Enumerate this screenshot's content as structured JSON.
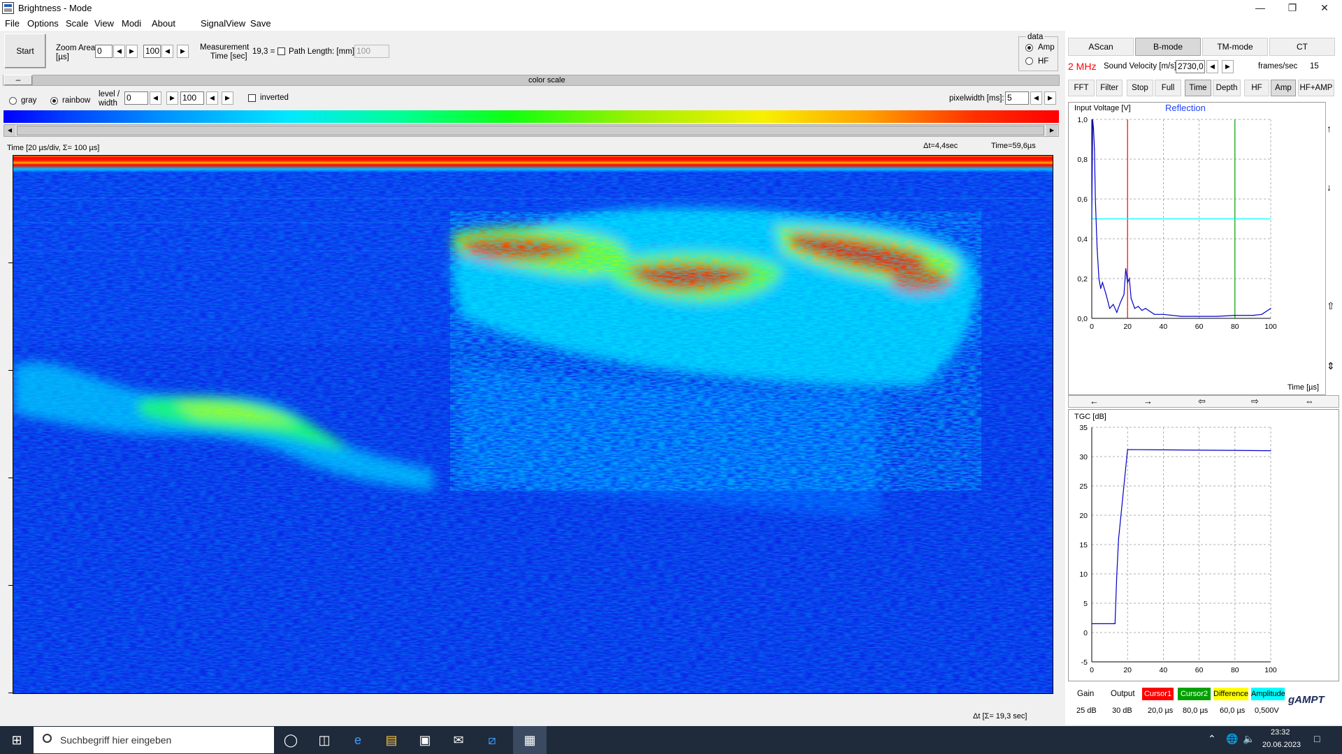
{
  "window": {
    "title": "Brightness - Mode"
  },
  "menu": [
    "File",
    "Options",
    "Scale",
    "View",
    "Modi",
    "About",
    "SignalView",
    "Save"
  ],
  "toolbar": {
    "start": "Start",
    "zoom_label": "Zoom Area",
    "zoom_unit": "[µs]",
    "zoom_from": "0",
    "zoom_to": "100",
    "meas_label1": "Measurement",
    "meas_label2": "Time [sec]",
    "meas_value": "19,3 =",
    "path_label": "Path Length: [mm]",
    "path_value": "100",
    "data_group": "data",
    "data_amp": "Amp",
    "data_hf": "HF"
  },
  "colorscale": {
    "collapse": "–",
    "title": "color scale",
    "gray": "gray",
    "rainbow": "rainbow",
    "level_label1": "level /",
    "level_label2": "width",
    "level_from": "0",
    "level_to": "100",
    "inverted": "inverted",
    "pixelwidth_label": "pixelwidth [ms]:",
    "pixelwidth_value": "5"
  },
  "bscan": {
    "time_label": "Time   [20 µs/div, Σ= 100 µs]",
    "dt": "Δt=4,4sec",
    "time": "Time=59,6µs",
    "bottom_label": "Δt  [Σ= 19,3 sec]"
  },
  "tabs": [
    "AScan",
    "B-mode",
    "TM-mode",
    "CT"
  ],
  "tab_selected": "B-mode",
  "freq": "2 MHz",
  "sound_velocity_label": "Sound Velocity [m/s]",
  "sound_velocity_value": "2730,0",
  "frames_label": "frames/sec",
  "frames_value": "15",
  "buttons": [
    "FFT",
    "Filter",
    "Stop",
    "Full",
    "Time",
    "Depth",
    "HF",
    "Amp",
    "HF+AMP"
  ],
  "ascan": {
    "ylabel": "Input Voltage [V]",
    "title": "Reflection",
    "xlabel": "Time [µs]",
    "yticks": [
      "1,0",
      "0,8",
      "0,6",
      "0,4",
      "0,2",
      "0,0"
    ],
    "xticks": [
      "0",
      "20",
      "40",
      "60",
      "80",
      "100"
    ]
  },
  "nav_arrows": [
    "←",
    "→",
    "⇦",
    "⇨",
    "⇔"
  ],
  "side_arrows": [
    "↑",
    "↓",
    "⇧",
    "⇕"
  ],
  "tgc": {
    "ylabel": "TGC [dB]",
    "yticks": [
      "35",
      "30",
      "25",
      "20",
      "15",
      "10",
      "5",
      "0",
      "-5"
    ],
    "xticks": [
      "0",
      "20",
      "40",
      "60",
      "80",
      "100"
    ]
  },
  "legend": {
    "headers": [
      "Gain",
      "Output",
      "Cursor1",
      "Cursor2",
      "Difference",
      "Amplitude"
    ],
    "values": [
      "25 dB",
      "30 dB",
      "20,0 µs",
      "80,0 µs",
      "60,0 µs",
      "0,500V"
    ],
    "colors": [
      "",
      "",
      "#ff0000",
      "#00a000",
      "#ffff00",
      "#00ffff"
    ],
    "logo": "gAMPT"
  },
  "chart_data": [
    {
      "type": "line",
      "title": "Reflection",
      "ylabel": "Input Voltage [V]",
      "xlabel": "Time [µs]",
      "xlim": [
        0,
        100
      ],
      "ylim": [
        0,
        1.0
      ],
      "grid": true,
      "series": [
        {
          "x": [
            0,
            0.5,
            1,
            1.5,
            2,
            3,
            4,
            5,
            6,
            8,
            10,
            12,
            14,
            16,
            18,
            19,
            20,
            21,
            22,
            24,
            26,
            28,
            30,
            35,
            40,
            50,
            60,
            70,
            80,
            90,
            95,
            100
          ],
          "values": [
            0.5,
            1.0,
            0.95,
            0.85,
            0.6,
            0.35,
            0.2,
            0.15,
            0.18,
            0.12,
            0.05,
            0.07,
            0.03,
            0.08,
            0.12,
            0.25,
            0.18,
            0.2,
            0.1,
            0.05,
            0.06,
            0.04,
            0.05,
            0.02,
            0.02,
            0.01,
            0.01,
            0.01,
            0.015,
            0.015,
            0.02,
            0.05
          ]
        }
      ],
      "cursors": [
        {
          "name": "Cursor1",
          "x": 20,
          "color": "#ff0000"
        },
        {
          "name": "Cursor2",
          "x": 80,
          "color": "#00a000"
        },
        {
          "name": "Amplitude",
          "y": 0.5,
          "color": "#00ffff"
        }
      ]
    },
    {
      "type": "line",
      "ylabel": "TGC [dB]",
      "xlim": [
        0,
        100
      ],
      "ylim": [
        -5,
        35
      ],
      "grid": true,
      "series": [
        {
          "x": [
            0,
            12,
            13,
            14,
            15,
            20,
            100
          ],
          "values": [
            1.5,
            1.5,
            1.5,
            10,
            16,
            31.2,
            31
          ]
        }
      ]
    }
  ]
}
